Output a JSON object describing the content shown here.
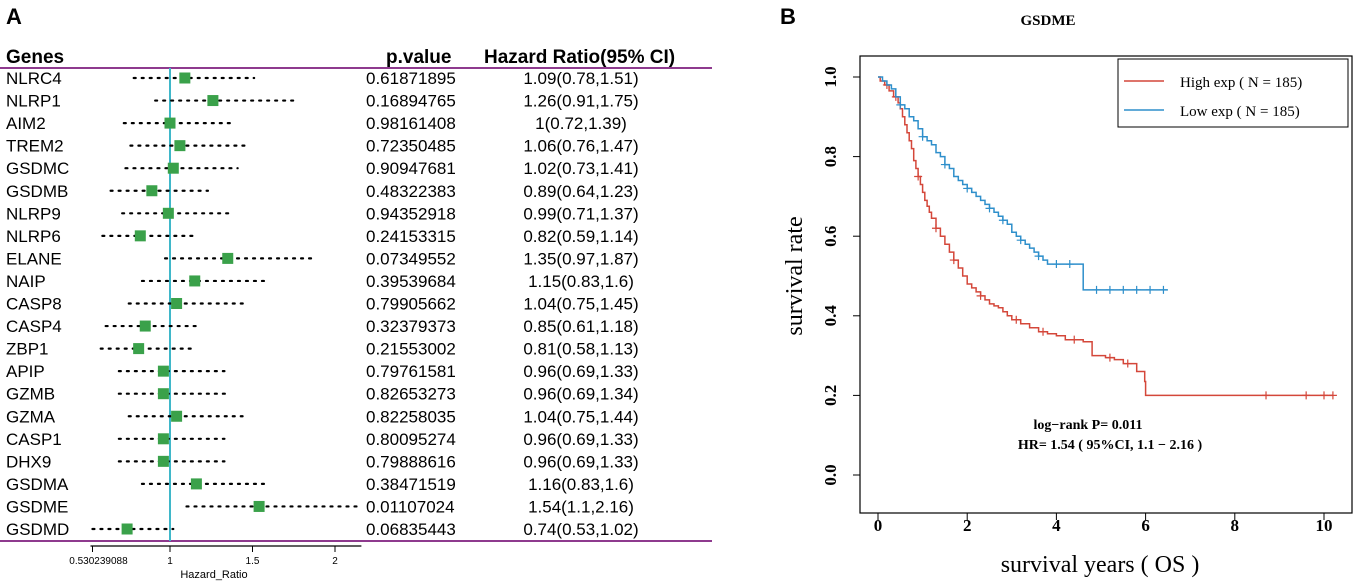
{
  "chart_data": [
    {
      "type": "forest",
      "panel_label": "A",
      "columns": {
        "genes": "Genes",
        "pvalue": "p.value",
        "hr": "Hazard Ratio(95% CI)"
      },
      "xlabel": "Hazard_Ratio",
      "xticks": [
        "0.530239088",
        "1",
        "1.5",
        "2"
      ],
      "xtick_values": [
        0.530239088,
        1,
        1.5,
        2
      ],
      "xlim": [
        0.530239088,
        2.16
      ],
      "reference_line": 1,
      "colors": {
        "point": "#3aa14a",
        "reference": "#3fb7c9",
        "rule": "#8e3a8e",
        "whisker": "#000000"
      },
      "rows": [
        {
          "gene": "NLRC4",
          "pvalue": "0.61871895",
          "hr_text": "1.09(0.78,1.51)",
          "hr": 1.09,
          "lo": 0.78,
          "hi": 1.51
        },
        {
          "gene": "NLRP1",
          "pvalue": "0.16894765",
          "hr_text": "1.26(0.91,1.75)",
          "hr": 1.26,
          "lo": 0.91,
          "hi": 1.75
        },
        {
          "gene": "AIM2",
          "pvalue": "0.98161408",
          "hr_text": "1(0.72,1.39)",
          "hr": 1.0,
          "lo": 0.72,
          "hi": 1.39
        },
        {
          "gene": "TREM2",
          "pvalue": "0.72350485",
          "hr_text": "1.06(0.76,1.47)",
          "hr": 1.06,
          "lo": 0.76,
          "hi": 1.47
        },
        {
          "gene": "GSDMC",
          "pvalue": "0.90947681",
          "hr_text": "1.02(0.73,1.41)",
          "hr": 1.02,
          "lo": 0.73,
          "hi": 1.41
        },
        {
          "gene": "GSDMB",
          "pvalue": "0.48322383",
          "hr_text": "0.89(0.64,1.23)",
          "hr": 0.89,
          "lo": 0.64,
          "hi": 1.23
        },
        {
          "gene": "NLRP9",
          "pvalue": "0.94352918",
          "hr_text": "0.99(0.71,1.37)",
          "hr": 0.99,
          "lo": 0.71,
          "hi": 1.37
        },
        {
          "gene": "NLRP6",
          "pvalue": "0.24153315",
          "hr_text": "0.82(0.59,1.14)",
          "hr": 0.82,
          "lo": 0.59,
          "hi": 1.14
        },
        {
          "gene": "ELANE",
          "pvalue": "0.07349552",
          "hr_text": "1.35(0.97,1.87)",
          "hr": 1.35,
          "lo": 0.97,
          "hi": 1.87
        },
        {
          "gene": "NAIP",
          "pvalue": "0.39539684",
          "hr_text": "1.15(0.83,1.6)",
          "hr": 1.15,
          "lo": 0.83,
          "hi": 1.6
        },
        {
          "gene": "CASP8",
          "pvalue": "0.79905662",
          "hr_text": "1.04(0.75,1.45)",
          "hr": 1.04,
          "lo": 0.75,
          "hi": 1.45
        },
        {
          "gene": "CASP4",
          "pvalue": "0.32379373",
          "hr_text": "0.85(0.61,1.18)",
          "hr": 0.85,
          "lo": 0.61,
          "hi": 1.18
        },
        {
          "gene": "ZBP1",
          "pvalue": "0.21553002",
          "hr_text": "0.81(0.58,1.13)",
          "hr": 0.81,
          "lo": 0.58,
          "hi": 1.13
        },
        {
          "gene": "APIP",
          "pvalue": "0.79761581",
          "hr_text": "0.96(0.69,1.33)",
          "hr": 0.96,
          "lo": 0.69,
          "hi": 1.33
        },
        {
          "gene": "GZMB",
          "pvalue": "0.82653273",
          "hr_text": "0.96(0.69,1.34)",
          "hr": 0.96,
          "lo": 0.69,
          "hi": 1.34
        },
        {
          "gene": "GZMA",
          "pvalue": "0.82258035",
          "hr_text": "1.04(0.75,1.44)",
          "hr": 1.04,
          "lo": 0.75,
          "hi": 1.44
        },
        {
          "gene": "CASP1",
          "pvalue": "0.80095274",
          "hr_text": "0.96(0.69,1.33)",
          "hr": 0.96,
          "lo": 0.69,
          "hi": 1.33
        },
        {
          "gene": "DHX9",
          "pvalue": "0.79888616",
          "hr_text": "0.96(0.69,1.33)",
          "hr": 0.96,
          "lo": 0.69,
          "hi": 1.33
        },
        {
          "gene": "GSDMA",
          "pvalue": "0.38471519",
          "hr_text": "1.16(0.83,1.6)",
          "hr": 1.16,
          "lo": 0.83,
          "hi": 1.6
        },
        {
          "gene": "GSDME",
          "pvalue": "0.01107024",
          "hr_text": "1.54(1.1,2.16)",
          "hr": 1.54,
          "lo": 1.1,
          "hi": 2.16
        },
        {
          "gene": "GSDMD",
          "pvalue": "0.06835443",
          "hr_text": "0.74(0.53,1.02)",
          "hr": 0.74,
          "lo": 0.53,
          "hi": 1.02
        }
      ]
    },
    {
      "type": "line",
      "subtype": "kaplan-meier",
      "panel_label": "B",
      "title": "GSDME",
      "xlabel": "survival years ( OS  )",
      "ylabel": "survival rate",
      "xlim": [
        0,
        10.3
      ],
      "ylim": [
        0,
        1.0
      ],
      "xticks": [
        0,
        2,
        4,
        6,
        8,
        10
      ],
      "xtick_labels": [
        "0",
        "2",
        "4",
        "6",
        "8",
        "10"
      ],
      "yticks": [
        0.0,
        0.2,
        0.4,
        0.6,
        0.8,
        1.0
      ],
      "ytick_labels": [
        "0.0",
        "0.2",
        "0.4",
        "0.6",
        "0.8",
        "1.0"
      ],
      "legend_position": "top-right",
      "annotations": [
        "log−rank P= 0.011",
        "HR= 1.54 ( 95%CI, 1.1 − 2.16 )"
      ],
      "series": [
        {
          "name": "High exp ( N = 185)",
          "color": "#d4473a",
          "x": [
            0,
            0.05,
            0.15,
            0.25,
            0.35,
            0.45,
            0.5,
            0.55,
            0.6,
            0.65,
            0.7,
            0.75,
            0.8,
            0.85,
            0.9,
            0.95,
            1.0,
            1.05,
            1.1,
            1.15,
            1.2,
            1.3,
            1.4,
            1.5,
            1.6,
            1.7,
            1.8,
            1.9,
            2.0,
            2.1,
            2.2,
            2.3,
            2.4,
            2.5,
            2.6,
            2.7,
            2.8,
            2.9,
            3.0,
            3.2,
            3.4,
            3.6,
            3.8,
            4.0,
            4.2,
            4.6,
            4.8,
            5.1,
            5.3,
            5.5,
            5.8,
            5.98,
            6.0,
            8.0,
            10.2
          ],
          "y": [
            1.0,
            0.99,
            0.98,
            0.965,
            0.95,
            0.935,
            0.92,
            0.9,
            0.88,
            0.86,
            0.84,
            0.82,
            0.79,
            0.77,
            0.75,
            0.73,
            0.71,
            0.69,
            0.675,
            0.66,
            0.645,
            0.62,
            0.6,
            0.58,
            0.56,
            0.54,
            0.52,
            0.5,
            0.48,
            0.47,
            0.46,
            0.45,
            0.44,
            0.43,
            0.425,
            0.42,
            0.41,
            0.4,
            0.39,
            0.38,
            0.37,
            0.36,
            0.355,
            0.35,
            0.34,
            0.335,
            0.3,
            0.295,
            0.29,
            0.28,
            0.26,
            0.235,
            0.2,
            0.2,
            0.2
          ],
          "censor_x": [
            0.2,
            0.4,
            0.9,
            1.3,
            1.7,
            2.3,
            3.1,
            3.7,
            4.4,
            5.2,
            5.6,
            8.7,
            9.6,
            10.0,
            10.2
          ]
        },
        {
          "name": "Low exp ( N = 185)",
          "color": "#2e8fcb",
          "x": [
            0,
            0.1,
            0.2,
            0.3,
            0.4,
            0.5,
            0.6,
            0.7,
            0.8,
            0.9,
            1.0,
            1.1,
            1.2,
            1.3,
            1.4,
            1.5,
            1.6,
            1.7,
            1.8,
            1.9,
            2.0,
            2.1,
            2.2,
            2.3,
            2.4,
            2.5,
            2.6,
            2.7,
            2.8,
            2.9,
            3.0,
            3.1,
            3.2,
            3.3,
            3.4,
            3.5,
            3.6,
            3.7,
            3.8,
            4.0,
            4.2,
            4.4,
            4.6,
            5.0,
            6.0,
            6.5
          ],
          "y": [
            1.0,
            0.99,
            0.98,
            0.97,
            0.95,
            0.93,
            0.92,
            0.9,
            0.89,
            0.87,
            0.85,
            0.84,
            0.83,
            0.81,
            0.8,
            0.78,
            0.77,
            0.75,
            0.74,
            0.73,
            0.72,
            0.71,
            0.7,
            0.69,
            0.68,
            0.67,
            0.66,
            0.65,
            0.64,
            0.63,
            0.61,
            0.6,
            0.59,
            0.58,
            0.57,
            0.56,
            0.55,
            0.54,
            0.53,
            0.53,
            0.53,
            0.53,
            0.465,
            0.465,
            0.465,
            0.465
          ],
          "censor_x": [
            0.5,
            1.0,
            1.5,
            2.0,
            2.5,
            2.8,
            3.2,
            3.6,
            4.0,
            4.3,
            4.9,
            5.2,
            5.5,
            5.8,
            6.1,
            6.4
          ]
        }
      ]
    }
  ]
}
